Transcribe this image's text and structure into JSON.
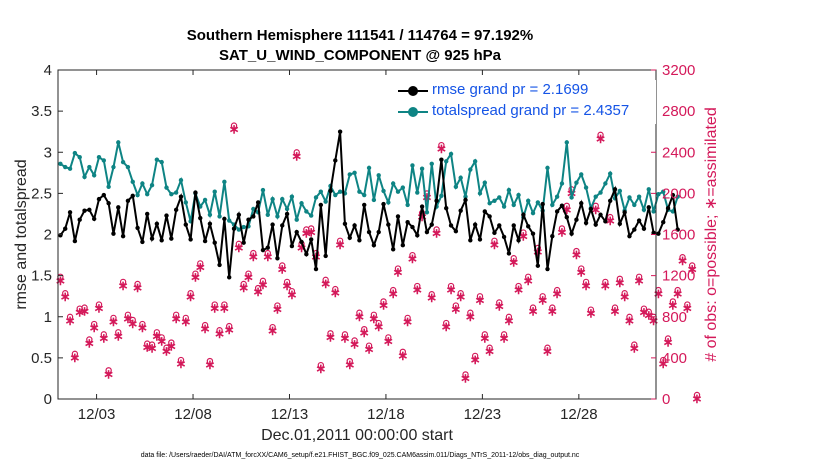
{
  "title": {
    "line1": "Southern Hemisphere 111541 / 114764 = 97.192%",
    "line2": "SAT_U_WIND_COMPONENT @ 925 hPa"
  },
  "footnote": "data file: /Users/raeder/DAI/ATM_forcXX/CAM6_setup/f.e21.FHIST_BGC.f09_025.CAM6assim.011/Diags_NTrS_2011-12/obs_diag_output.nc",
  "colors": {
    "rmse": "#000000",
    "spread": "#0e8484",
    "obs": "#d4195a",
    "legend_text": "#1554e6"
  },
  "chart_data": {
    "type": "line",
    "xlabel": "Dec.01,2011 00:00:00 start",
    "ylabel_left": "rmse and totalspread",
    "ylabel_right": "# of obs: o=possible; ∗=assimilated",
    "xlim": [
      0,
      31
    ],
    "ylim_left": [
      0,
      4
    ],
    "ylim_right": [
      0,
      3200
    ],
    "x_tick_values": [
      2,
      7,
      12,
      17,
      22,
      27
    ],
    "x_tick_labels": [
      "12/03",
      "12/08",
      "12/13",
      "12/18",
      "12/23",
      "12/28"
    ],
    "y_left_ticks": [
      "0",
      "0.5",
      "1",
      "1.5",
      "2",
      "2.5",
      "3",
      "3.5",
      "4"
    ],
    "y_right_ticks": [
      "0",
      "400",
      "800",
      "1200",
      "1600",
      "2000",
      "2400",
      "2800",
      "3200"
    ],
    "grid": false,
    "legend_position": "top-right",
    "legend": [
      "rmse grand pr = 2.1699",
      "totalspread grand pr = 2.4357"
    ],
    "series": [
      {
        "name": "rmse grand pr = 2.1699",
        "axis": "left",
        "x_start": 0.125,
        "x_step": 0.25,
        "values": [
          1.99,
          2.07,
          2.27,
          1.92,
          2.18,
          2.29,
          2.3,
          2.19,
          2.43,
          2.48,
          2.38,
          2.01,
          2.33,
          1.98,
          2.41,
          2.47,
          2.08,
          1.91,
          2.25,
          1.95,
          2.13,
          1.93,
          2.23,
          1.95,
          2.3,
          2.46,
          2.12,
          1.94,
          2.51,
          2.2,
          1.92,
          2.13,
          1.9,
          1.63,
          2.19,
          1.48,
          2.07,
          2.24,
          1.9,
          2.18,
          2.22,
          2.39,
          1.81,
          1.84,
          2.12,
          1.71,
          2.11,
          2.25,
          1.86,
          2.03,
          1.91,
          1.76,
          1.94,
          1.58,
          2.36,
          1.74,
          2.53,
          2.9,
          3.25,
          2.13,
          1.96,
          2.11,
          1.93,
          2.36,
          2.03,
          1.87,
          2.03,
          2.37,
          2.12,
          1.82,
          2.22,
          1.87,
          2.15,
          2.09,
          1.99,
          2.34,
          2.03,
          2.12,
          2.41,
          2.91,
          2.32,
          2.11,
          2.04,
          2.29,
          2.42,
          1.93,
          2.12,
          1.94,
          2.28,
          2.22,
          2.02,
          2.11,
          1.97,
          1.77,
          2.11,
          1.93,
          2.24,
          2.1,
          2.01,
          1.62,
          2.37,
          1.58,
          1.98,
          2.28,
          2.35,
          2.21,
          2.01,
          2.18,
          2.38,
          2.14,
          2.31,
          2.12,
          2.24,
          2.16,
          2.41,
          2.55,
          2.13,
          2.27,
          1.98,
          2.06,
          2.17,
          2.07,
          2.33,
          2.02,
          2.01,
          2.15,
          2.32,
          2.48,
          2.06
        ]
      },
      {
        "name": "totalspread grand pr = 2.4357",
        "axis": "left",
        "x_start": 0.125,
        "x_step": 0.25,
        "values": [
          2.86,
          2.82,
          2.8,
          2.99,
          2.94,
          2.7,
          2.82,
          2.72,
          2.94,
          2.9,
          2.58,
          2.82,
          3.12,
          2.88,
          2.82,
          2.64,
          2.48,
          2.62,
          2.49,
          2.6,
          2.91,
          2.88,
          2.57,
          2.49,
          2.51,
          2.66,
          2.39,
          2.16,
          2.5,
          2.34,
          2.42,
          2.24,
          2.52,
          2.22,
          2.64,
          2.17,
          2.12,
          2.06,
          2.09,
          2.1,
          2.31,
          2.27,
          2.54,
          2.24,
          2.43,
          2.22,
          2.43,
          2.31,
          2.46,
          2.18,
          2.38,
          2.28,
          2.23,
          2.45,
          2.52,
          2.4,
          2.59,
          2.48,
          2.52,
          2.5,
          2.73,
          2.75,
          2.52,
          2.48,
          2.81,
          2.42,
          2.72,
          2.53,
          2.39,
          2.62,
          2.52,
          2.57,
          2.36,
          2.84,
          2.51,
          2.8,
          2.27,
          2.86,
          2.34,
          2.47,
          2.89,
          2.98,
          2.58,
          2.69,
          2.46,
          2.79,
          2.89,
          2.5,
          2.63,
          2.38,
          2.41,
          2.45,
          2.34,
          2.54,
          2.36,
          2.48,
          2.21,
          2.41,
          2.26,
          2.39,
          2.29,
          2.81,
          2.36,
          2.46,
          2.62,
          3.12,
          2.45,
          2.63,
          2.73,
          2.57,
          2.32,
          2.46,
          2.51,
          2.62,
          2.74,
          2.44,
          2.53,
          2.29,
          2.45,
          2.36,
          2.46,
          2.3,
          2.55,
          2.28,
          2.49,
          2.52,
          2.3,
          2.28,
          2.46
        ]
      },
      {
        "name": "possible",
        "axis": "right",
        "marker": "o",
        "x_start": 0.125,
        "x_step": 0.25,
        "values": [
          1150,
          990,
          760,
          400,
          840,
          850,
          540,
          690,
          880,
          590,
          240,
          750,
          610,
          1100,
          780,
          730,
          1080,
          690,
          500,
          490,
          610,
          560,
          460,
          510,
          780,
          340,
          750,
          990,
          1180,
          1280,
          680,
          330,
          880,
          630,
          880,
          670,
          2620,
          1470,
          1080,
          1180,
          1380,
          1040,
          1110,
          1380,
          660,
          870,
          1260,
          1100,
          1010,
          2360,
          1470,
          1610,
          1620,
          1380,
          290,
          1120,
          600,
          1030,
          1500,
          590,
          330,
          530,
          800,
          640,
          480,
          780,
          700,
          910,
          560,
          1020,
          1230,
          420,
          750,
          1360,
          1060,
          1770,
          1960,
          980,
          1610,
          2430,
          700,
          1060,
          870,
          990,
          200,
          800,
          380,
          960,
          590,
          460,
          1500,
          900,
          590,
          760,
          1330,
          1060,
          1580,
          1150,
          850,
          1430,
          960,
          460,
          850,
          1020,
          1620,
          1840,
          2000,
          1400,
          1230,
          1100,
          830,
          1840,
          2530,
          1100,
          1730,
          850,
          1130,
          990,
          760,
          490,
          1150,
          840,
          810,
          760,
          1020,
          340,
          550,
          910,
          1020,
          1340,
          880,
          1260,
          0
        ]
      },
      {
        "name": "assimilated",
        "axis": "right",
        "marker": "*",
        "x_start": 0.125,
        "x_step": 0.25,
        "values": [
          1150,
          990,
          760,
          400,
          840,
          850,
          540,
          690,
          880,
          590,
          240,
          750,
          610,
          1100,
          780,
          730,
          1080,
          690,
          500,
          490,
          610,
          560,
          460,
          510,
          780,
          340,
          750,
          990,
          1180,
          1280,
          680,
          330,
          880,
          630,
          880,
          670,
          2620,
          1470,
          1080,
          1180,
          1380,
          1040,
          1110,
          1380,
          660,
          870,
          1260,
          1100,
          1010,
          2360,
          1470,
          1610,
          1620,
          1380,
          290,
          1120,
          600,
          1030,
          1500,
          590,
          330,
          530,
          800,
          640,
          480,
          780,
          700,
          910,
          560,
          1020,
          1230,
          420,
          750,
          1360,
          1060,
          1770,
          1960,
          980,
          1610,
          2430,
          700,
          1060,
          870,
          990,
          200,
          800,
          380,
          960,
          590,
          460,
          1500,
          900,
          590,
          760,
          1330,
          1060,
          1580,
          1150,
          850,
          1430,
          960,
          460,
          850,
          1020,
          1620,
          1840,
          2000,
          1400,
          1230,
          1100,
          830,
          1840,
          2530,
          1100,
          1730,
          850,
          1130,
          990,
          760,
          490,
          1150,
          840,
          810,
          760,
          1020,
          340,
          550,
          910,
          1020,
          1340,
          880,
          1260,
          0
        ]
      }
    ]
  }
}
